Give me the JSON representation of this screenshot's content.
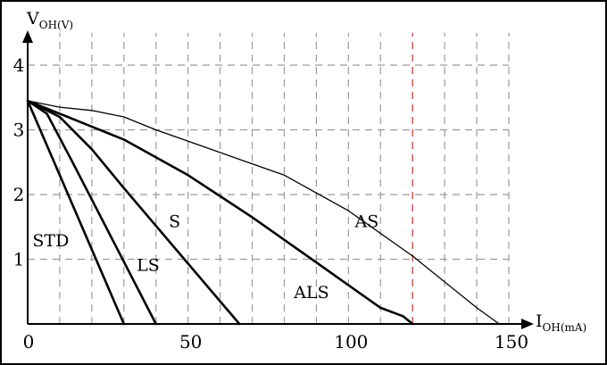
{
  "chart_data": {
    "type": "line",
    "y_axis_label": {
      "main": "V",
      "sub": "OH(V)"
    },
    "x_axis_label": {
      "main": "I",
      "sub": "OH(mA)"
    },
    "xlim": [
      0,
      150
    ],
    "ylim": [
      0,
      4.5
    ],
    "x_ticks": [
      0,
      50,
      100,
      150
    ],
    "y_ticks": [
      1,
      2,
      3,
      4
    ],
    "grid": true,
    "grid_x_step": 10,
    "grid_y_step": 1,
    "highlight_gridline_x": 120,
    "series": [
      {
        "name": "STD",
        "stroke_width": 2.6,
        "x": [
          0,
          30
        ],
        "y": [
          3.45,
          0
        ]
      },
      {
        "name": "LS",
        "stroke_width": 2.6,
        "x": [
          0,
          6,
          14,
          40
        ],
        "y": [
          3.45,
          3.25,
          2.5,
          0
        ]
      },
      {
        "name": "S",
        "stroke_width": 2.6,
        "x": [
          0,
          10,
          20,
          30,
          66
        ],
        "y": [
          3.45,
          3.2,
          2.7,
          2.1,
          0
        ]
      },
      {
        "name": "ALS",
        "stroke_width": 2.6,
        "x": [
          0,
          10,
          20,
          30,
          50,
          70,
          90,
          100,
          110,
          117,
          120
        ],
        "y": [
          3.45,
          3.25,
          3.05,
          2.85,
          2.3,
          1.65,
          0.95,
          0.6,
          0.25,
          0.12,
          0
        ]
      },
      {
        "name": "AS",
        "stroke_width": 1.3,
        "x": [
          0,
          10,
          20,
          30,
          40,
          60,
          80,
          100,
          120,
          140,
          147
        ],
        "y": [
          3.45,
          3.35,
          3.3,
          3.2,
          3.0,
          2.65,
          2.3,
          1.75,
          1.05,
          0.25,
          0
        ]
      }
    ]
  }
}
